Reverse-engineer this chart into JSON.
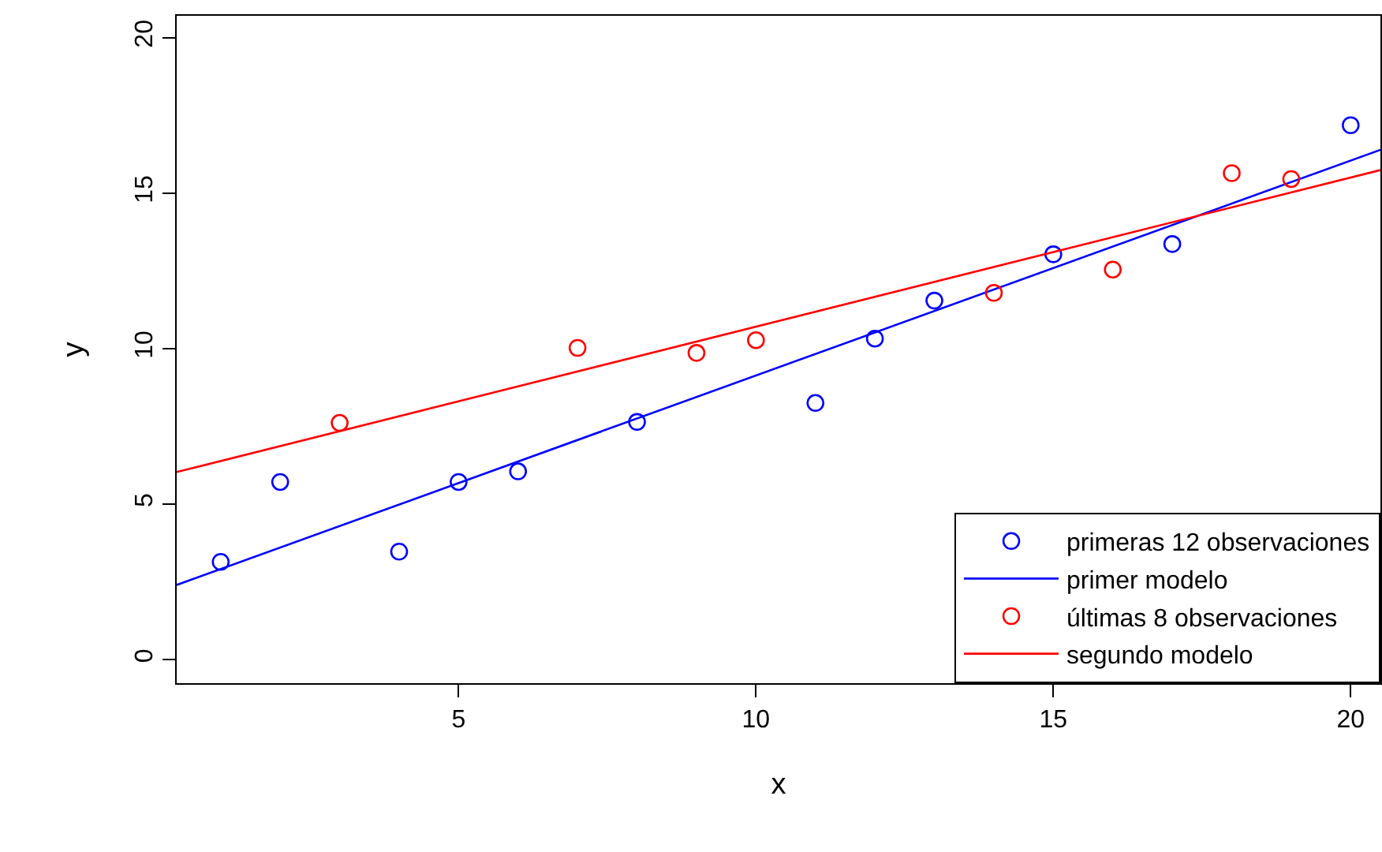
{
  "chart_data": {
    "type": "scatter",
    "xlabel": "x",
    "ylabel": "y",
    "xlim": [
      0.26,
      20.5
    ],
    "ylim": [
      -0.76,
      20.7
    ],
    "xticks": [
      5,
      10,
      15,
      20
    ],
    "yticks": [
      0,
      5,
      10,
      15,
      20
    ],
    "grid": false,
    "legend": "bottom right",
    "series": [
      {
        "name": "primeras 12 observaciones",
        "marker": "circle",
        "color": "#0000ff",
        "x": [
          1,
          2,
          4,
          5,
          6,
          8,
          11,
          12,
          13,
          15,
          17,
          20
        ],
        "values": [
          3.14,
          5.71,
          3.47,
          5.71,
          6.05,
          7.64,
          8.25,
          10.32,
          11.54,
          13.03,
          13.36,
          17.18
        ]
      },
      {
        "name": "primer modelo",
        "type": "line",
        "marker": "none",
        "color": "#0000ff",
        "line_style": "solid",
        "x": [
          0.26,
          20.5
        ],
        "values": [
          2.4,
          16.39
        ]
      },
      {
        "name": "últimas 8 observaciones",
        "marker": "circle",
        "color": "#ff0000",
        "x": [
          3,
          7,
          9,
          10,
          14,
          16,
          18,
          19
        ],
        "values": [
          7.61,
          10.02,
          9.86,
          10.27,
          11.79,
          12.54,
          15.64,
          15.45
        ]
      },
      {
        "name": "segundo modelo",
        "type": "line",
        "marker": "none",
        "color": "#ff0000",
        "line_style": "solid",
        "x": [
          0.26,
          20.5
        ],
        "values": [
          6.03,
          15.74
        ]
      }
    ]
  }
}
